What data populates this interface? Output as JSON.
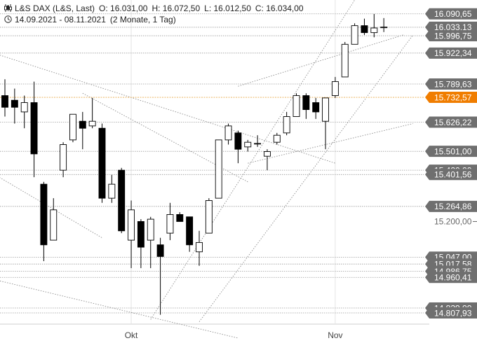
{
  "header": {
    "instrument": "L&S DAX (L&S, Last)",
    "open": "O: 16.031,00",
    "high": "H: 16.072,50",
    "low": "L: 16.012,50",
    "close": "C: 16.034,00",
    "range": "14.09.2021 - 08.11.2021",
    "period": "(2 Monate, 1 Tag)",
    "chart_icon": "candlestick-icon",
    "time_icon": "clock-icon"
  },
  "colors": {
    "candle_down": "#000000",
    "candle_up": "#ffffff",
    "label_bg": "#6f6f6f",
    "label_text": "#ffffff",
    "current_bg": "#f07d00",
    "current_line": "#e8a84a",
    "line": "#9a9a9a"
  },
  "chart_data": {
    "type": "candlestick",
    "x_ticks": [
      {
        "label": "Okt",
        "index": 13
      },
      {
        "label": "Nov",
        "index": 34
      }
    ],
    "ylim": [
      14760,
      16150
    ],
    "y_axis_labels": [
      {
        "value": 15200.0,
        "label": "15.200,00"
      }
    ],
    "candles": [
      {
        "o": 15740,
        "h": 15810,
        "l": 15650,
        "c": 15690
      },
      {
        "o": 15720,
        "h": 15770,
        "l": 15620,
        "c": 15690
      },
      {
        "o": 15670,
        "h": 15740,
        "l": 15600,
        "c": 15710
      },
      {
        "o": 15710,
        "h": 15800,
        "l": 15390,
        "c": 15490
      },
      {
        "o": 15360,
        "h": 15370,
        "l": 15030,
        "c": 15100
      },
      {
        "o": 15120,
        "h": 15300,
        "l": 15120,
        "c": 15250
      },
      {
        "o": 15420,
        "h": 15540,
        "l": 15390,
        "c": 15530
      },
      {
        "o": 15550,
        "h": 15650,
        "l": 15540,
        "c": 15660
      },
      {
        "o": 15630,
        "h": 15670,
        "l": 15510,
        "c": 15600
      },
      {
        "o": 15610,
        "h": 15730,
        "l": 15600,
        "c": 15630
      },
      {
        "o": 15600,
        "h": 15620,
        "l": 15280,
        "c": 15300
      },
      {
        "o": 15300,
        "h": 15400,
        "l": 15280,
        "c": 15360
      },
      {
        "o": 15420,
        "h": 15430,
        "l": 15150,
        "c": 15160
      },
      {
        "o": 15120,
        "h": 15290,
        "l": 15000,
        "c": 15250
      },
      {
        "o": 15200,
        "h": 15210,
        "l": 15000,
        "c": 15090
      },
      {
        "o": 15120,
        "h": 15220,
        "l": 15000,
        "c": 15210
      },
      {
        "o": 15100,
        "h": 15130,
        "l": 14800,
        "c": 15050
      },
      {
        "o": 15150,
        "h": 15280,
        "l": 15120,
        "c": 15230
      },
      {
        "o": 15230,
        "h": 15240,
        "l": 15200,
        "c": 15200
      },
      {
        "o": 15220,
        "h": 15220,
        "l": 15070,
        "c": 15100
      },
      {
        "o": 15070,
        "h": 15160,
        "l": 15010,
        "c": 15110
      },
      {
        "o": 15150,
        "h": 15300,
        "l": 15150,
        "c": 15290
      },
      {
        "o": 15300,
        "h": 15550,
        "l": 15300,
        "c": 15550
      },
      {
        "o": 15550,
        "h": 15620,
        "l": 15530,
        "c": 15610
      },
      {
        "o": 15580,
        "h": 15590,
        "l": 15450,
        "c": 15510
      },
      {
        "o": 15520,
        "h": 15550,
        "l": 15500,
        "c": 15540
      },
      {
        "o": 15535,
        "h": 15570,
        "l": 15520,
        "c": 15535
      },
      {
        "o": 15480,
        "h": 15510,
        "l": 15420,
        "c": 15500
      },
      {
        "o": 15540,
        "h": 15580,
        "l": 15530,
        "c": 15570
      },
      {
        "o": 15580,
        "h": 15670,
        "l": 15570,
        "c": 15650
      },
      {
        "o": 15650,
        "h": 15750,
        "l": 15650,
        "c": 15740
      },
      {
        "o": 15740,
        "h": 15750,
        "l": 15640,
        "c": 15680
      },
      {
        "o": 15710,
        "h": 15730,
        "l": 15640,
        "c": 15670
      },
      {
        "o": 15630,
        "h": 15730,
        "l": 15510,
        "c": 15730
      },
      {
        "o": 15740,
        "h": 15820,
        "l": 15730,
        "c": 15800
      },
      {
        "o": 15820,
        "h": 15970,
        "l": 15820,
        "c": 15960
      },
      {
        "o": 15960,
        "h": 16050,
        "l": 15960,
        "c": 16040
      },
      {
        "o": 16040,
        "h": 16070,
        "l": 16000,
        "c": 16010
      },
      {
        "o": 16010,
        "h": 16090,
        "l": 15990,
        "c": 16030
      },
      {
        "o": 16031,
        "h": 16072.5,
        "l": 16012.5,
        "c": 16034
      }
    ],
    "price_levels": [
      {
        "value": 16090.65,
        "label": "16.090,65"
      },
      {
        "value": 16033.13,
        "label": "16.033,13"
      },
      {
        "value": 15996.75,
        "label": "15.996,75"
      },
      {
        "value": 15922.34,
        "label": "15.922,34"
      },
      {
        "value": 15789.63,
        "label": "15.789,63"
      },
      {
        "value": 15732.57,
        "label": "15.732,57",
        "current": true
      },
      {
        "value": 15626.22,
        "label": "15.626,22"
      },
      {
        "value": 15501.0,
        "label": "15.501,00"
      },
      {
        "value": 15420.0,
        "label": "15.420,00"
      },
      {
        "value": 15401.56,
        "label": "15.401,56"
      },
      {
        "value": 15264.86,
        "label": "15.264,86"
      },
      {
        "value": 15047.0,
        "label": "15.047,00"
      },
      {
        "value": 15017.58,
        "label": "15.017,58"
      },
      {
        "value": 14986.75,
        "label": "14.986,75"
      },
      {
        "value": 14960.41,
        "label": "14.960,41"
      },
      {
        "value": 14829.0,
        "label": "14.829,00"
      },
      {
        "value": 14807.93,
        "label": "14.807,93"
      }
    ],
    "trendlines": [
      {
        "from": [
          -1,
          15400
        ],
        "to": [
          10,
          15130
        ],
        "dash": "dotted"
      },
      {
        "from": [
          -1,
          15920
        ],
        "to": [
          34,
          15450
        ],
        "dash": "dotted"
      },
      {
        "from": [
          8,
          15750
        ],
        "to": [
          25,
          15370
        ],
        "dash": "dotted"
      },
      {
        "from": [
          15,
          14780
        ],
        "to": [
          36,
          16150
        ],
        "dash": "dotted"
      },
      {
        "from": [
          20,
          14770
        ],
        "to": [
          42,
          16000
        ],
        "dash": "dotted"
      },
      {
        "from": [
          25,
          15450
        ],
        "to": [
          42,
          15620
        ],
        "dash": "dotted"
      },
      {
        "from": [
          24,
          15780
        ],
        "to": [
          41,
          16000
        ],
        "dash": "dotted"
      },
      {
        "from": [
          -1,
          14950
        ],
        "to": [
          24,
          14700
        ],
        "dash": "dotted"
      }
    ]
  }
}
